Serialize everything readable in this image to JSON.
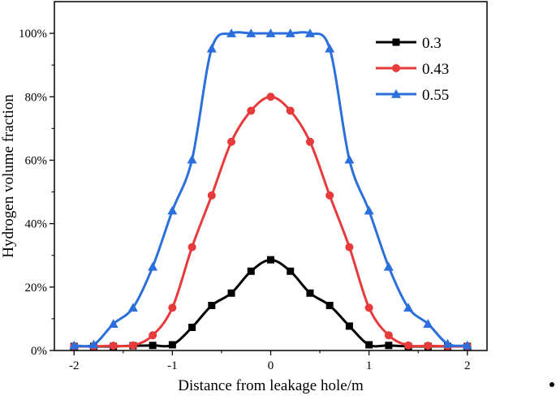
{
  "chart_data": {
    "type": "line",
    "title": "",
    "xlabel": "Distance from leakage hole/m",
    "ylabel": "Hydrogen volume fraction",
    "xlim": [
      -2.2,
      2.2
    ],
    "ylim": [
      0,
      110
    ],
    "xticks": [
      -2,
      -1,
      0,
      1,
      2
    ],
    "xtick_labels": [
      "-2",
      "-1",
      "0",
      "1",
      "2"
    ],
    "yticks": [
      0,
      20,
      40,
      60,
      80,
      100
    ],
    "ytick_labels": [
      "0%",
      "20%",
      "40%",
      "60%",
      "80%",
      "100%"
    ],
    "grid": false,
    "legend_position": "top-right",
    "x": [
      -2.0,
      -1.8,
      -1.6,
      -1.4,
      -1.2,
      -1.0,
      -0.8,
      -0.6,
      -0.4,
      -0.2,
      0.0,
      0.2,
      0.4,
      0.6,
      0.8,
      1.0,
      1.2,
      1.4,
      1.6,
      1.8,
      2.0
    ],
    "series": [
      {
        "name": "0.3",
        "color": "#000000",
        "marker": "square",
        "values": [
          1.3,
          1.3,
          1.3,
          1.5,
          1.6,
          1.8,
          7.3,
          14.2,
          18.1,
          25.0,
          28.6,
          25.0,
          18.1,
          14.2,
          7.7,
          1.8,
          1.6,
          1.3,
          1.3,
          1.3,
          1.3
        ]
      },
      {
        "name": "0.43",
        "color": "#e8393b",
        "marker": "circle",
        "values": [
          1.3,
          1.3,
          1.5,
          1.6,
          4.8,
          13.5,
          32.6,
          48.9,
          65.8,
          75.6,
          80.0,
          75.6,
          65.8,
          48.9,
          32.6,
          13.5,
          4.8,
          1.6,
          1.5,
          1.3,
          1.3
        ]
      },
      {
        "name": "0.55",
        "color": "#2a6fdb",
        "marker": "triangle",
        "values": [
          1.6,
          1.9,
          8.4,
          13.5,
          26.4,
          44.1,
          60.2,
          95.2,
          100.0,
          100.0,
          100.0,
          100.0,
          100.0,
          95.2,
          60.2,
          44.1,
          26.4,
          13.5,
          8.4,
          2.1,
          1.6
        ]
      }
    ]
  }
}
